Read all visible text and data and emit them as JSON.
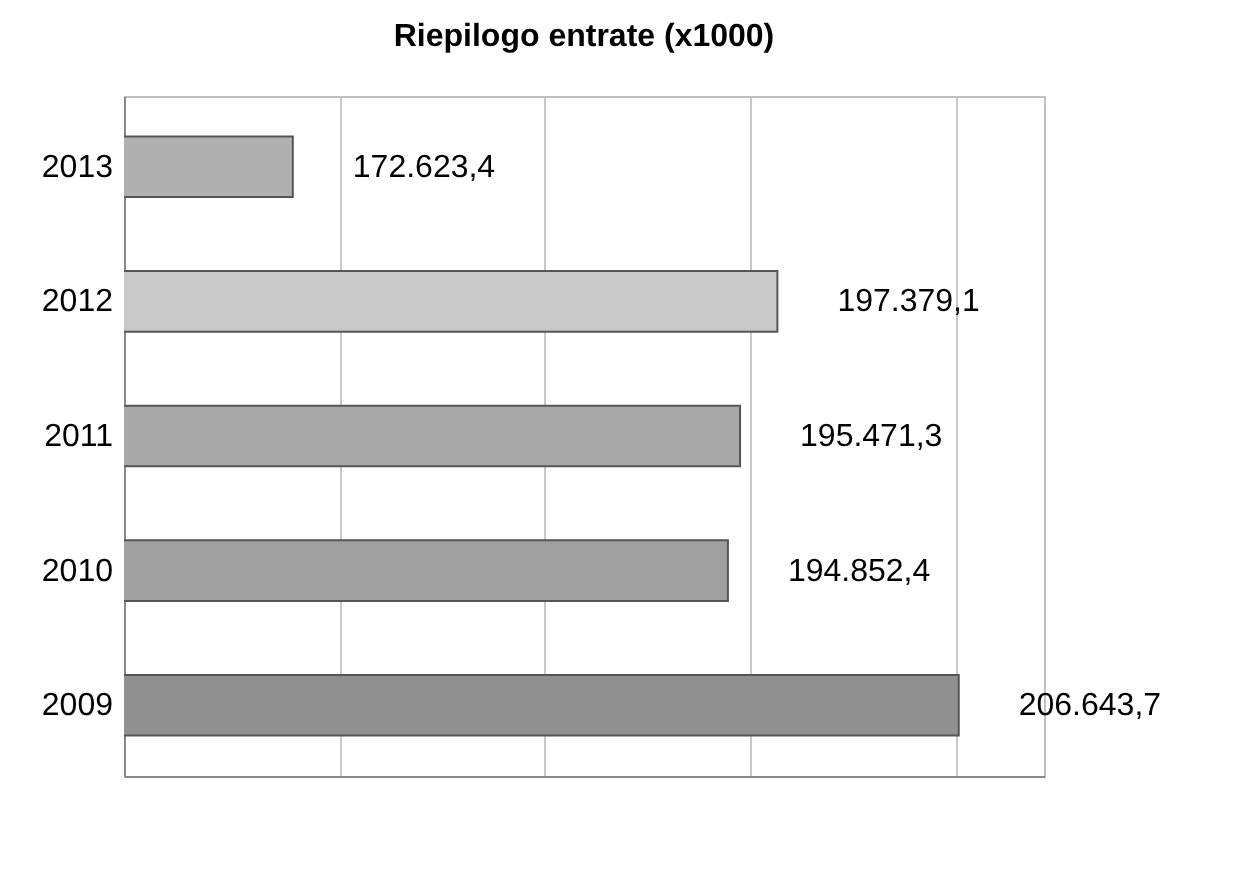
{
  "chart_data": {
    "type": "bar",
    "orientation": "horizontal",
    "title": "Riepilogo entrate (x1000)",
    "categories": [
      "2013",
      "2012",
      "2011",
      "2010",
      "2009"
    ],
    "values": [
      172623.4,
      197379.1,
      195471.3,
      194852.4,
      206643.7
    ],
    "value_labels": [
      "172.623,4",
      "197.379,1",
      "195.471,3",
      "194.852,4",
      "206.643,7"
    ],
    "colors": [
      "#b0b0b0",
      "#c8c8c8",
      "#a8a8a8",
      "#a0a0a0",
      "#909090"
    ],
    "xlim": [
      164000,
      211000
    ],
    "xticks": [
      {
        "value": 175000,
        "label": null
      },
      {
        "value": 185500,
        "label": null
      },
      {
        "value": 196000,
        "label": null
      },
      {
        "value": 206500,
        "label": null
      }
    ],
    "grid": "x",
    "tick_labels": "y"
  }
}
